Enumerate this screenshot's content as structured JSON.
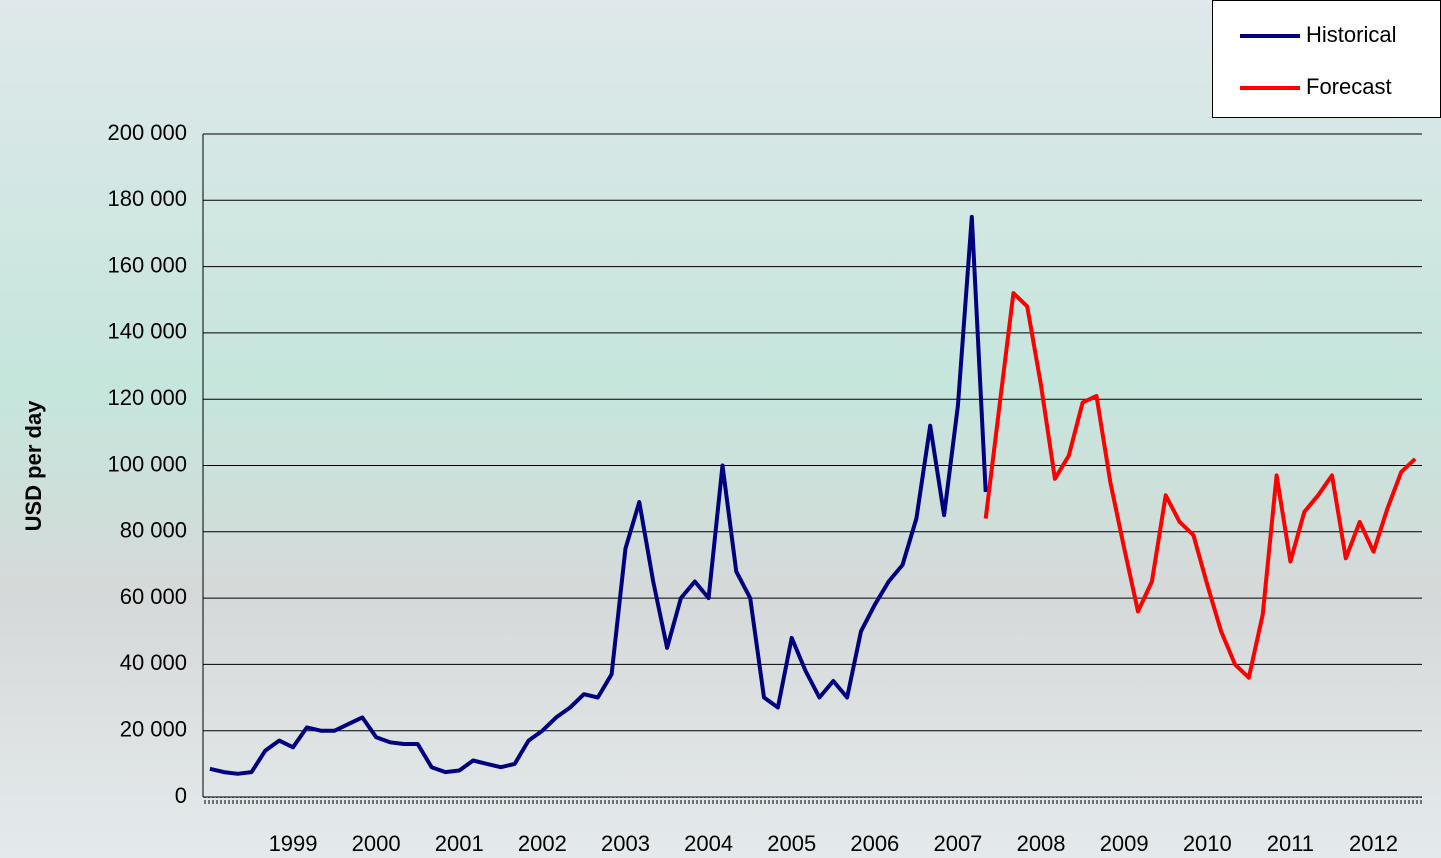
{
  "chart_data": {
    "type": "line",
    "y_label": "USD per day",
    "categories": [
      null,
      null,
      null,
      null,
      null,
      null,
      "1999",
      null,
      null,
      null,
      null,
      null,
      "2000",
      null,
      null,
      null,
      null,
      null,
      "2001",
      null,
      null,
      null,
      null,
      null,
      "2002",
      null,
      null,
      null,
      null,
      null,
      "2003",
      null,
      null,
      null,
      null,
      null,
      "2004",
      null,
      null,
      null,
      null,
      null,
      "2005",
      null,
      null,
      null,
      null,
      null,
      "2006",
      null,
      null,
      null,
      null,
      null,
      "2007",
      null,
      null,
      null,
      null,
      null,
      "2008",
      null,
      null,
      null,
      null,
      null,
      "2009",
      null,
      null,
      null,
      null,
      null,
      "2010",
      null,
      null,
      null,
      null,
      null,
      "2011",
      null,
      null,
      null,
      null,
      null,
      "2012",
      null,
      null,
      null
    ],
    "series": [
      {
        "name": "Historical",
        "color": "#000080",
        "values": [
          8500,
          7500,
          7000,
          7500,
          14000,
          17000,
          15000,
          21000,
          20000,
          20000,
          22000,
          24000,
          18000,
          16500,
          16000,
          16000,
          9000,
          7500,
          8000,
          11000,
          10000,
          9000,
          10000,
          17000,
          20000,
          24000,
          27000,
          31000,
          30000,
          37000,
          75000,
          89000,
          65000,
          45000,
          60000,
          65000,
          60000,
          100000,
          68000,
          60000,
          30000,
          27000,
          48000,
          38000,
          30000,
          35000,
          30000,
          50000,
          58000,
          65000,
          70000,
          84000,
          112000,
          85000,
          118000,
          175000,
          92000,
          null,
          null,
          null,
          null,
          null,
          null,
          null,
          null,
          null,
          null,
          null,
          null,
          null,
          null,
          null,
          null,
          null,
          null,
          null,
          null,
          null,
          null,
          null,
          null,
          null,
          null,
          null,
          null,
          null,
          null,
          null
        ]
      },
      {
        "name": "Forecast",
        "color": "#ff0000",
        "values": [
          null,
          null,
          null,
          null,
          null,
          null,
          null,
          null,
          null,
          null,
          null,
          null,
          null,
          null,
          null,
          null,
          null,
          null,
          null,
          null,
          null,
          null,
          null,
          null,
          null,
          null,
          null,
          null,
          null,
          null,
          null,
          null,
          null,
          null,
          null,
          null,
          null,
          null,
          null,
          null,
          null,
          null,
          null,
          null,
          null,
          null,
          null,
          null,
          null,
          null,
          null,
          null,
          null,
          null,
          null,
          null,
          84000,
          118000,
          152000,
          148000,
          124000,
          96000,
          103000,
          119000,
          121000,
          95000,
          75000,
          56000,
          65000,
          91000,
          83000,
          79000,
          64000,
          50000,
          40000,
          36000,
          55000,
          97000,
          71000,
          86000,
          91000,
          97000,
          72000,
          83000,
          74000,
          87000,
          98000,
          102000
        ]
      }
    ],
    "ylim": [
      0,
      200000
    ],
    "yticks": [
      0,
      {
        "value": 20000,
        "label": "20 000"
      },
      {
        "value": 40000,
        "label": "40 000"
      },
      {
        "value": 60000,
        "label": "60 000"
      },
      {
        "value": 80000,
        "label": "80 000"
      },
      {
        "value": 100000,
        "label": "100 000"
      },
      {
        "value": 120000,
        "label": "120 000"
      },
      {
        "value": 140000,
        "label": "140 000"
      },
      {
        "value": 160000,
        "label": "160 000"
      },
      {
        "value": 180000,
        "label": "180 000"
      },
      {
        "value": 200000,
        "label": "200 000"
      }
    ],
    "grid": true,
    "legend": "top-right"
  }
}
